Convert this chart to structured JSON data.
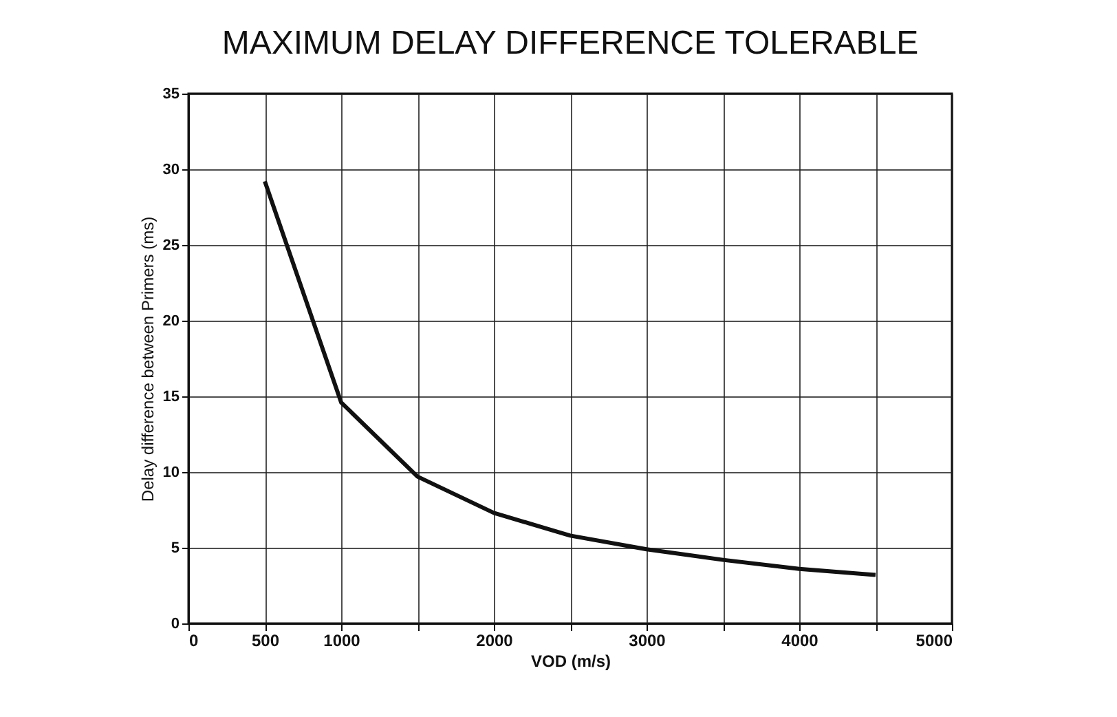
{
  "chart_data": {
    "type": "line",
    "title": "MAXIMUM DELAY DIFFERENCE TOLERABLE",
    "xlabel": "VOD (m/s)",
    "ylabel": "Delay difference between Primers (ms)",
    "x": [
      500,
      1000,
      1500,
      2000,
      2500,
      3000,
      3500,
      4000,
      4500
    ],
    "series": [
      {
        "color": "#111111",
        "values": [
          29.2,
          14.6,
          9.7,
          7.3,
          5.8,
          4.9,
          4.2,
          3.6,
          3.2
        ]
      }
    ],
    "xlim": [
      0,
      5000
    ],
    "ylim": [
      0,
      35
    ],
    "xticks": [
      0,
      500,
      1000,
      {
        "value": 1500,
        "label": null
      },
      2000,
      {
        "value": 2500,
        "label": null
      },
      3000,
      {
        "value": 3500,
        "label": null
      },
      4000,
      {
        "value": 4500,
        "label": null
      },
      5000
    ],
    "yticks": [
      0,
      5,
      10,
      15,
      20,
      25,
      30,
      35
    ],
    "grid": true,
    "legend": false,
    "marker": "none",
    "line_style": "solid"
  }
}
